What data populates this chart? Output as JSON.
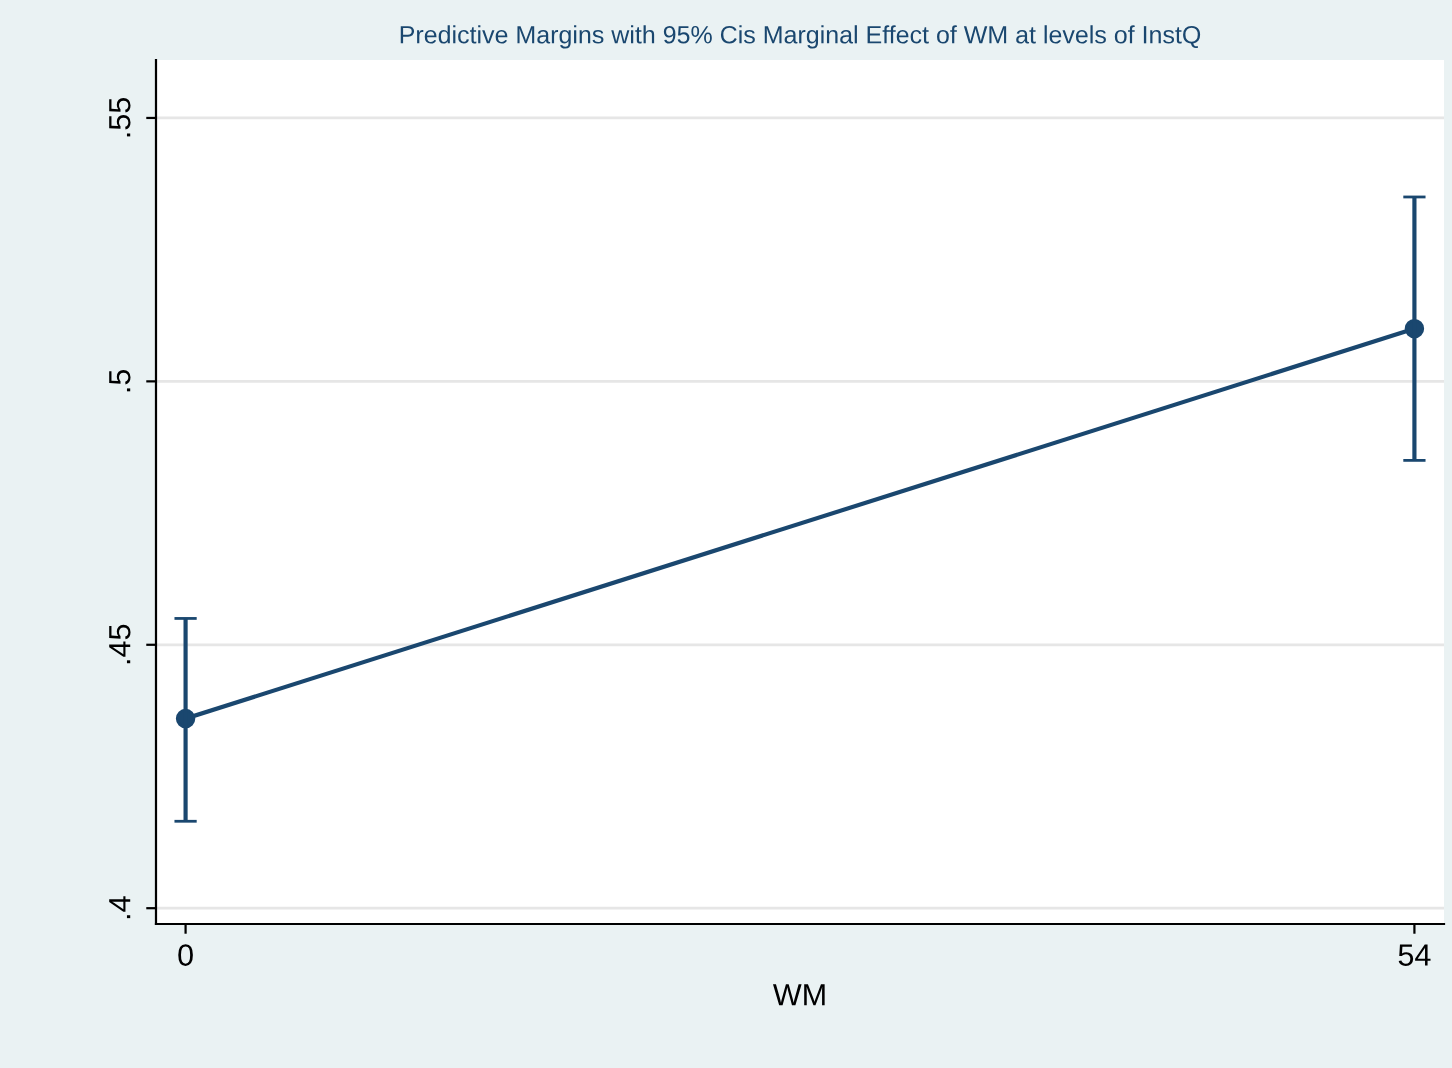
{
  "chart_data": {
    "type": "line",
    "title": "Predictive Margins with 95% Cis Marginal Effect of WM at levels of InstQ",
    "xlabel": "WM",
    "x": [
      0,
      54
    ],
    "series": [
      {
        "color": "#1a476f",
        "values": [
          0.436,
          0.51
        ],
        "errors": [
          [
            0.4165,
            0.455
          ],
          [
            0.485,
            0.535
          ]
        ]
      }
    ],
    "xlim": [
      -1.3,
      55.3
    ],
    "xticks": [
      0,
      54
    ],
    "ylim": [
      0.397,
      0.561
    ],
    "yticks": [
      {
        "value": 0.4,
        "label": ".4"
      },
      {
        "value": 0.45,
        "label": ".45"
      },
      {
        "value": 0.5,
        "label": ".5"
      },
      {
        "value": 0.55,
        "label": ".55"
      }
    ],
    "grid": "y",
    "marker": "circle",
    "line_style": "solid"
  }
}
